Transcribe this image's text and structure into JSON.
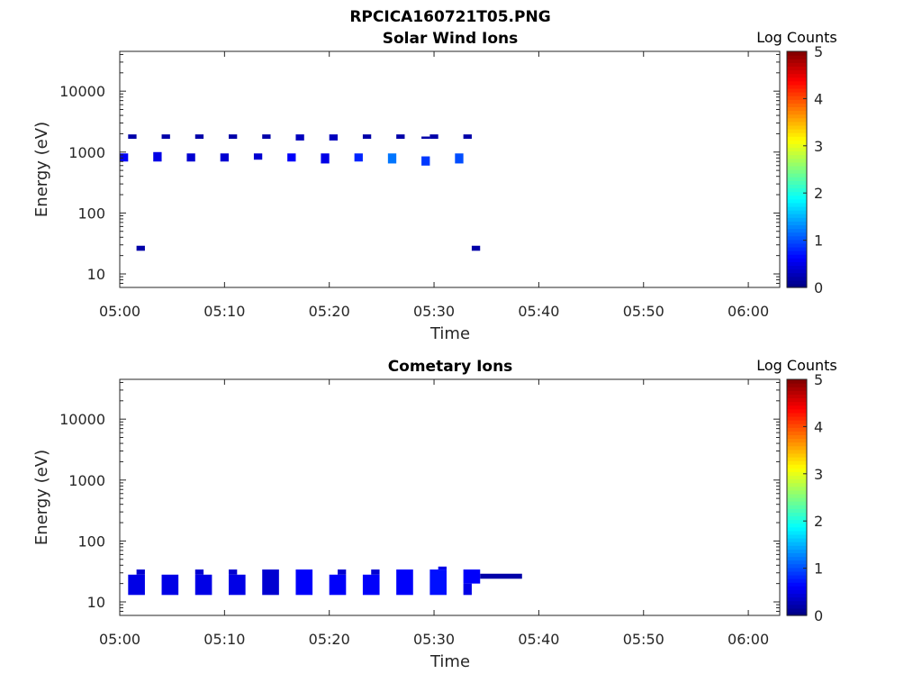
{
  "figure_title": "RPCICA160721T05.PNG",
  "chart_data": [
    {
      "type": "heatmap",
      "title": "Solar Wind Ions",
      "xlabel": "Time",
      "ylabel": "Energy (eV)",
      "y_scale": "log",
      "xlim": [
        "05:00",
        "06:03"
      ],
      "ylim": [
        6,
        45000
      ],
      "x_ticks": [
        "05:00",
        "05:10",
        "05:20",
        "05:30",
        "05:40",
        "05:50",
        "06:00"
      ],
      "y_ticks": [
        "10",
        "100",
        "1000",
        "10000"
      ],
      "colorbar": {
        "title": "Log Counts",
        "range": [
          0,
          5
        ],
        "ticks": [
          "0",
          "1",
          "2",
          "3",
          "4",
          "5"
        ],
        "colormap": "jet"
      },
      "cells": [
        {
          "t0": 0.8,
          "t1": 1.6,
          "e0": 1650,
          "e1": 1950,
          "z": 0.2
        },
        {
          "t0": 4.0,
          "t1": 4.8,
          "e0": 1650,
          "e1": 1950,
          "z": 0.2
        },
        {
          "t0": 7.2,
          "t1": 8.0,
          "e0": 1650,
          "e1": 1950,
          "z": 0.2
        },
        {
          "t0": 10.4,
          "t1": 11.2,
          "e0": 1650,
          "e1": 1950,
          "z": 0.2
        },
        {
          "t0": 13.6,
          "t1": 14.4,
          "e0": 1650,
          "e1": 1950,
          "z": 0.2
        },
        {
          "t0": 16.8,
          "t1": 17.6,
          "e0": 1550,
          "e1": 1950,
          "z": 0.3
        },
        {
          "t0": 20.0,
          "t1": 20.8,
          "e0": 1550,
          "e1": 1950,
          "z": 0.3
        },
        {
          "t0": 23.2,
          "t1": 24.0,
          "e0": 1650,
          "e1": 1950,
          "z": 0.2
        },
        {
          "t0": 26.4,
          "t1": 27.2,
          "e0": 1650,
          "e1": 1950,
          "z": 0.2
        },
        {
          "t0": 29.6,
          "t1": 30.4,
          "e0": 1650,
          "e1": 1950,
          "z": 0.2
        },
        {
          "t0": 28.8,
          "t1": 29.6,
          "e0": 1650,
          "e1": 1800,
          "z": 0.2
        },
        {
          "t0": 32.8,
          "t1": 33.6,
          "e0": 1650,
          "e1": 1950,
          "z": 0.2
        },
        {
          "t0": 0.0,
          "t1": 0.8,
          "e0": 700,
          "e1": 950,
          "z": 0.6
        },
        {
          "t0": 3.2,
          "t1": 4.0,
          "e0": 700,
          "e1": 1000,
          "z": 0.5
        },
        {
          "t0": 6.4,
          "t1": 7.2,
          "e0": 700,
          "e1": 950,
          "z": 0.4
        },
        {
          "t0": 9.6,
          "t1": 10.4,
          "e0": 700,
          "e1": 950,
          "z": 0.4
        },
        {
          "t0": 12.8,
          "t1": 13.6,
          "e0": 750,
          "e1": 950,
          "z": 0.4
        },
        {
          "t0": 16.0,
          "t1": 16.8,
          "e0": 700,
          "e1": 950,
          "z": 0.6
        },
        {
          "t0": 19.2,
          "t1": 20.0,
          "e0": 650,
          "e1": 950,
          "z": 0.5
        },
        {
          "t0": 22.4,
          "t1": 23.2,
          "e0": 700,
          "e1": 950,
          "z": 0.8
        },
        {
          "t0": 25.6,
          "t1": 26.4,
          "e0": 650,
          "e1": 950,
          "z": 1.2
        },
        {
          "t0": 28.8,
          "t1": 29.6,
          "e0": 600,
          "e1": 850,
          "z": 0.9
        },
        {
          "t0": 32.0,
          "t1": 32.8,
          "e0": 650,
          "e1": 950,
          "z": 1.0
        },
        {
          "t0": 1.6,
          "t1": 2.4,
          "e0": 24,
          "e1": 29,
          "z": 0.2
        },
        {
          "t0": 33.6,
          "t1": 34.4,
          "e0": 24,
          "e1": 29,
          "z": 0.2
        }
      ]
    },
    {
      "type": "heatmap",
      "title": "Cometary Ions",
      "xlabel": "Time",
      "ylabel": "Energy (eV)",
      "y_scale": "log",
      "xlim": [
        "05:00",
        "06:03"
      ],
      "ylim": [
        6,
        45000
      ],
      "x_ticks": [
        "05:00",
        "05:10",
        "05:20",
        "05:30",
        "05:40",
        "05:50",
        "06:00"
      ],
      "y_ticks": [
        "10",
        "100",
        "1000",
        "10000"
      ],
      "colorbar": {
        "title": "Log Counts",
        "range": [
          0,
          5
        ],
        "ticks": [
          "0",
          "1",
          "2",
          "3",
          "4",
          "5"
        ],
        "colormap": "jet"
      },
      "cells": [
        {
          "t0": 0.8,
          "t1": 2.4,
          "e0": 13,
          "e1": 28,
          "z": 0.5
        },
        {
          "t0": 1.6,
          "t1": 2.4,
          "e0": 28,
          "e1": 34,
          "z": 0.4
        },
        {
          "t0": 4.0,
          "t1": 5.6,
          "e0": 13,
          "e1": 28,
          "z": 0.5
        },
        {
          "t0": 7.2,
          "t1": 8.8,
          "e0": 13,
          "e1": 28,
          "z": 0.5
        },
        {
          "t0": 7.2,
          "t1": 8.0,
          "e0": 28,
          "e1": 34,
          "z": 0.4
        },
        {
          "t0": 10.4,
          "t1": 12.0,
          "e0": 13,
          "e1": 28,
          "z": 0.5
        },
        {
          "t0": 10.4,
          "t1": 11.2,
          "e0": 28,
          "e1": 34,
          "z": 0.4
        },
        {
          "t0": 13.6,
          "t1": 15.2,
          "e0": 13,
          "e1": 34,
          "z": 0.4
        },
        {
          "t0": 16.8,
          "t1": 18.4,
          "e0": 13,
          "e1": 34,
          "z": 0.6
        },
        {
          "t0": 20.0,
          "t1": 21.6,
          "e0": 13,
          "e1": 28,
          "z": 0.6
        },
        {
          "t0": 20.8,
          "t1": 21.6,
          "e0": 28,
          "e1": 34,
          "z": 0.4
        },
        {
          "t0": 23.2,
          "t1": 24.8,
          "e0": 13,
          "e1": 28,
          "z": 0.6
        },
        {
          "t0": 24.0,
          "t1": 24.8,
          "e0": 28,
          "e1": 34,
          "z": 0.4
        },
        {
          "t0": 26.4,
          "t1": 28.0,
          "e0": 13,
          "e1": 34,
          "z": 0.6
        },
        {
          "t0": 29.6,
          "t1": 31.2,
          "e0": 13,
          "e1": 34,
          "z": 0.7
        },
        {
          "t0": 30.4,
          "t1": 31.2,
          "e0": 34,
          "e1": 38,
          "z": 0.5
        },
        {
          "t0": 32.8,
          "t1": 34.4,
          "e0": 20,
          "e1": 34,
          "z": 0.6
        },
        {
          "t0": 32.8,
          "t1": 33.6,
          "e0": 13,
          "e1": 20,
          "z": 0.5
        },
        {
          "t0": 34.4,
          "t1": 38.4,
          "e0": 24,
          "e1": 29,
          "z": 0.2
        }
      ]
    }
  ]
}
